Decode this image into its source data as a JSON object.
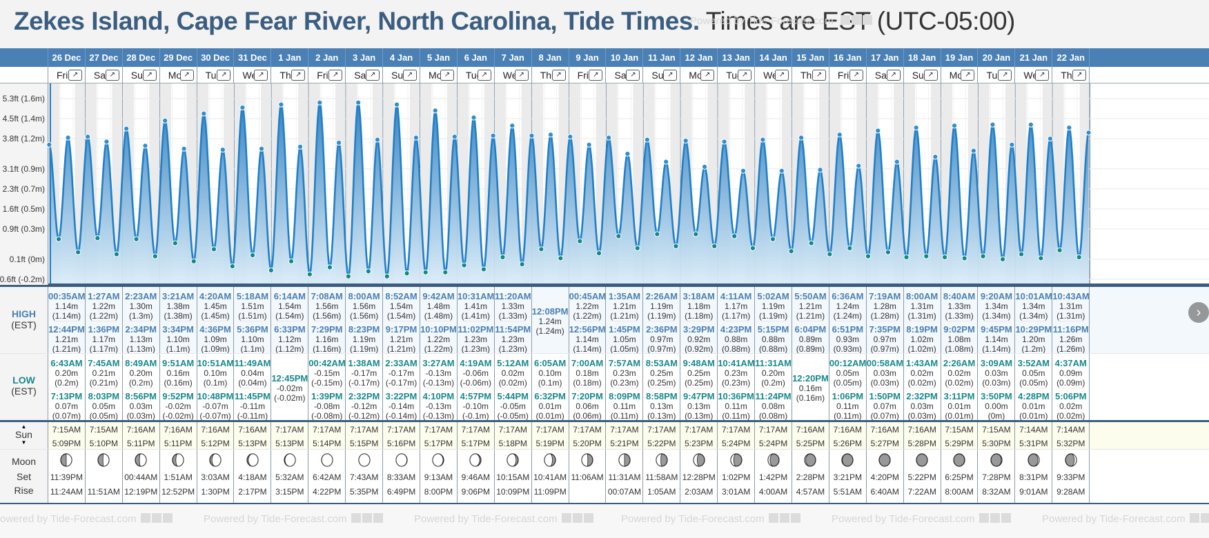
{
  "header": {
    "title_place": "Zekes Island, Cape Fear River, North Carolina, Tide Times.",
    "title_tz": "Times are EST (UTC-05:00)",
    "watermark": "Powered by Tide-Forecast.com"
  },
  "labels": {
    "high": "HIGH",
    "low": "LOW",
    "est": "(EST)",
    "sun": "Sun",
    "moon": "Moon",
    "set": "Set",
    "rise": "Rise",
    "expand_icon": "↗"
  },
  "colors": {
    "header_blue": "#4a80b4",
    "title_blue": "#3b5e80",
    "high_dot": "#2f8fd0",
    "low_dot": "#12888c",
    "line": "#1f80c8"
  },
  "chart_data": {
    "type": "area",
    "title": "Zekes Island tide height",
    "ylabel": "Tide height",
    "y_ticks": [
      "5.3ft (1.6m)",
      "4.5ft (1.4m)",
      "3.8ft (1.2m)",
      "3.1ft (0.9m)",
      "2.3ft (0.7m)",
      "1.6ft (0.5m)",
      "0.9ft (0.3m)",
      "0.1ft (0m)",
      "-0.6ft (-0.2m)"
    ],
    "y_tick_values_m": [
      1.6,
      1.4,
      1.2,
      0.9,
      0.7,
      0.5,
      0.3,
      0.0,
      -0.2
    ],
    "ylim_m": [
      -0.2,
      1.75
    ],
    "grid": true
  },
  "days": [
    {
      "date": "26 Dec",
      "dow": "Fri",
      "high": [
        {
          "t": "00:35AM",
          "h": "1.14m",
          "m": "(1.14m)"
        },
        {
          "t": "12:44PM",
          "h": "1.21m",
          "m": "(1.21m)"
        }
      ],
      "low": [
        {
          "t": "6:43AM",
          "h": "0.20m",
          "m": "(0.2m)"
        },
        {
          "t": "7:13PM",
          "h": "0.07m",
          "m": "(0.07m)"
        }
      ],
      "sunrise": "7:15AM",
      "sunset": "5:09PM",
      "moon_set": "11:39PM",
      "moon_rise": "11:24AM",
      "moon_phase": 0.5,
      "moon_waxing": true
    },
    {
      "date": "27 Dec",
      "dow": "Sat",
      "high": [
        {
          "t": "1:27AM",
          "h": "1.22m",
          "m": "(1.22m)"
        },
        {
          "t": "1:36PM",
          "h": "1.17m",
          "m": "(1.17m)"
        }
      ],
      "low": [
        {
          "t": "7:45AM",
          "h": "0.21m",
          "m": "(0.21m)"
        },
        {
          "t": "8:03PM",
          "h": "0.05m",
          "m": "(0.05m)"
        }
      ],
      "sunrise": "7:15AM",
      "sunset": "5:10PM",
      "moon_set": "",
      "moon_rise": "11:51AM",
      "moon_phase": 0.55,
      "moon_waxing": true
    },
    {
      "date": "28 Dec",
      "dow": "Sun",
      "high": [
        {
          "t": "2:23AM",
          "h": "1.30m",
          "m": "(1.3m)"
        },
        {
          "t": "2:34PM",
          "h": "1.13m",
          "m": "(1.13m)"
        }
      ],
      "low": [
        {
          "t": "8:49AM",
          "h": "0.20m",
          "m": "(0.2m)"
        },
        {
          "t": "8:56PM",
          "h": "0.03m",
          "m": "(0.03m)"
        }
      ],
      "sunrise": "7:16AM",
      "sunset": "5:11PM",
      "moon_set": "00:44AM",
      "moon_rise": "12:19PM",
      "moon_phase": 0.62,
      "moon_waxing": true
    },
    {
      "date": "29 Dec",
      "dow": "Mon",
      "high": [
        {
          "t": "3:21AM",
          "h": "1.38m",
          "m": "(1.38m)"
        },
        {
          "t": "3:34PM",
          "h": "1.10m",
          "m": "(1.1m)"
        }
      ],
      "low": [
        {
          "t": "9:51AM",
          "h": "0.16m",
          "m": "(0.16m)"
        },
        {
          "t": "9:52PM",
          "h": "-0.02m",
          "m": "(-0.02m)"
        }
      ],
      "sunrise": "7:16AM",
      "sunset": "5:11PM",
      "moon_set": "1:51AM",
      "moon_rise": "12:52PM",
      "moon_phase": 0.7,
      "moon_waxing": true
    },
    {
      "date": "30 Dec",
      "dow": "Tue",
      "high": [
        {
          "t": "4:20AM",
          "h": "1.45m",
          "m": "(1.45m)"
        },
        {
          "t": "4:36PM",
          "h": "1.09m",
          "m": "(1.09m)"
        }
      ],
      "low": [
        {
          "t": "10:51AM",
          "h": "0.10m",
          "m": "(0.1m)"
        },
        {
          "t": "10:48PM",
          "h": "-0.07m",
          "m": "(-0.07m)"
        }
      ],
      "sunrise": "7:16AM",
      "sunset": "5:12PM",
      "moon_set": "3:03AM",
      "moon_rise": "1:30PM",
      "moon_phase": 0.8,
      "moon_waxing": true
    },
    {
      "date": "31 Dec",
      "dow": "Wed",
      "high": [
        {
          "t": "5:18AM",
          "h": "1.51m",
          "m": "(1.51m)"
        },
        {
          "t": "5:36PM",
          "h": "1.10m",
          "m": "(1.1m)"
        }
      ],
      "low": [
        {
          "t": "11:49AM",
          "h": "0.04m",
          "m": "(0.04m)"
        },
        {
          "t": "11:45PM",
          "h": "-0.11m",
          "m": "(-0.11m)"
        }
      ],
      "sunrise": "7:16AM",
      "sunset": "5:13PM",
      "moon_set": "4:18AM",
      "moon_rise": "2:17PM",
      "moon_phase": 0.88,
      "moon_waxing": true
    },
    {
      "date": "1 Jan",
      "dow": "Thu",
      "high": [
        {
          "t": "6:14AM",
          "h": "1.54m",
          "m": "(1.54m)"
        },
        {
          "t": "6:33PM",
          "h": "1.12m",
          "m": "(1.12m)"
        }
      ],
      "low": [
        {
          "t": "12:45PM",
          "h": "-0.02m",
          "m": "(-0.02m)"
        }
      ],
      "sunrise": "7:17AM",
      "sunset": "5:13PM",
      "moon_set": "5:32AM",
      "moon_rise": "3:15PM",
      "moon_phase": 0.94,
      "moon_waxing": true
    },
    {
      "date": "2 Jan",
      "dow": "Fri",
      "high": [
        {
          "t": "7:08AM",
          "h": "1.56m",
          "m": "(1.56m)"
        },
        {
          "t": "7:29PM",
          "h": "1.16m",
          "m": "(1.16m)"
        }
      ],
      "low": [
        {
          "t": "00:42AM",
          "h": "-0.15m",
          "m": "(-0.15m)"
        },
        {
          "t": "1:39PM",
          "h": "-0.08m",
          "m": "(-0.08m)"
        }
      ],
      "sunrise": "7:17AM",
      "sunset": "5:14PM",
      "moon_set": "6:42AM",
      "moon_rise": "4:22PM",
      "moon_phase": 0.99,
      "moon_waxing": true
    },
    {
      "date": "3 Jan",
      "dow": "Sat",
      "high": [
        {
          "t": "8:00AM",
          "h": "1.56m",
          "m": "(1.56m)"
        },
        {
          "t": "8:23PM",
          "h": "1.19m",
          "m": "(1.19m)"
        }
      ],
      "low": [
        {
          "t": "1:38AM",
          "h": "-0.17m",
          "m": "(-0.17m)"
        },
        {
          "t": "2:32PM",
          "h": "-0.12m",
          "m": "(-0.12m)"
        }
      ],
      "sunrise": "7:17AM",
      "sunset": "5:15PM",
      "moon_set": "7:43AM",
      "moon_rise": "5:35PM",
      "moon_phase": 1.0,
      "moon_waxing": true
    },
    {
      "date": "4 Jan",
      "dow": "Sun",
      "high": [
        {
          "t": "8:52AM",
          "h": "1.54m",
          "m": "(1.54m)"
        },
        {
          "t": "9:17PM",
          "h": "1.21m",
          "m": "(1.21m)"
        }
      ],
      "low": [
        {
          "t": "2:33AM",
          "h": "-0.17m",
          "m": "(-0.17m)"
        },
        {
          "t": "3:22PM",
          "h": "-0.14m",
          "m": "(-0.14m)"
        }
      ],
      "sunrise": "7:17AM",
      "sunset": "5:16PM",
      "moon_set": "8:33AM",
      "moon_rise": "6:49PM",
      "moon_phase": 0.98,
      "moon_waxing": false
    },
    {
      "date": "5 Jan",
      "dow": "Mon",
      "high": [
        {
          "t": "9:42AM",
          "h": "1.48m",
          "m": "(1.48m)"
        },
        {
          "t": "10:10PM",
          "h": "1.22m",
          "m": "(1.22m)"
        }
      ],
      "low": [
        {
          "t": "3:27AM",
          "h": "-0.13m",
          "m": "(-0.13m)"
        },
        {
          "t": "4:10PM",
          "h": "-0.13m",
          "m": "(-0.13m)"
        }
      ],
      "sunrise": "7:17AM",
      "sunset": "5:17PM",
      "moon_set": "9:13AM",
      "moon_rise": "8:00PM",
      "moon_phase": 0.94,
      "moon_waxing": false
    },
    {
      "date": "6 Jan",
      "dow": "Tue",
      "high": [
        {
          "t": "10:31AM",
          "h": "1.41m",
          "m": "(1.41m)"
        },
        {
          "t": "11:02PM",
          "h": "1.23m",
          "m": "(1.23m)"
        }
      ],
      "low": [
        {
          "t": "4:19AM",
          "h": "-0.06m",
          "m": "(-0.06m)"
        },
        {
          "t": "4:57PM",
          "h": "-0.10m",
          "m": "(-0.1m)"
        }
      ],
      "sunrise": "7:17AM",
      "sunset": "5:17PM",
      "moon_set": "9:46AM",
      "moon_rise": "9:06PM",
      "moon_phase": 0.88,
      "moon_waxing": false
    },
    {
      "date": "7 Jan",
      "dow": "Wed",
      "high": [
        {
          "t": "11:20AM",
          "h": "1.33m",
          "m": "(1.33m)"
        },
        {
          "t": "11:54PM",
          "h": "1.23m",
          "m": "(1.23m)"
        }
      ],
      "low": [
        {
          "t": "5:12AM",
          "h": "0.02m",
          "m": "(0.02m)"
        },
        {
          "t": "5:44PM",
          "h": "-0.05m",
          "m": "(-0.05m)"
        }
      ],
      "sunrise": "7:17AM",
      "sunset": "5:18PM",
      "moon_set": "10:15AM",
      "moon_rise": "10:09PM",
      "moon_phase": 0.8,
      "moon_waxing": false
    },
    {
      "date": "8 Jan",
      "dow": "Thu",
      "high": [
        {
          "t": "12:08PM",
          "h": "1.24m",
          "m": "(1.24m)"
        }
      ],
      "low": [
        {
          "t": "6:05AM",
          "h": "0.10m",
          "m": "(0.1m)"
        },
        {
          "t": "6:32PM",
          "h": "0.01m",
          "m": "(0.01m)"
        }
      ],
      "sunrise": "7:17AM",
      "sunset": "5:19PM",
      "moon_set": "10:41AM",
      "moon_rise": "11:09PM",
      "moon_phase": 0.72,
      "moon_waxing": false
    },
    {
      "date": "9 Jan",
      "dow": "Fri",
      "high": [
        {
          "t": "00:45AM",
          "h": "1.22m",
          "m": "(1.22m)"
        },
        {
          "t": "12:56PM",
          "h": "1.14m",
          "m": "(1.14m)"
        }
      ],
      "low": [
        {
          "t": "7:00AM",
          "h": "0.18m",
          "m": "(0.18m)"
        },
        {
          "t": "7:20PM",
          "h": "0.06m",
          "m": "(0.06m)"
        }
      ],
      "sunrise": "7:17AM",
      "sunset": "5:20PM",
      "moon_set": "11:06AM",
      "moon_rise": "",
      "moon_phase": 0.55,
      "moon_waxing": false
    },
    {
      "date": "10 Jan",
      "dow": "Sat",
      "high": [
        {
          "t": "1:35AM",
          "h": "1.21m",
          "m": "(1.21m)"
        },
        {
          "t": "1:45PM",
          "h": "1.05m",
          "m": "(1.05m)"
        }
      ],
      "low": [
        {
          "t": "7:57AM",
          "h": "0.23m",
          "m": "(0.23m)"
        },
        {
          "t": "8:09PM",
          "h": "0.11m",
          "m": "(0.11m)"
        }
      ],
      "sunrise": "7:17AM",
      "sunset": "5:21PM",
      "moon_set": "11:31AM",
      "moon_rise": "00:07AM",
      "moon_phase": 0.5,
      "moon_waxing": false
    },
    {
      "date": "11 Jan",
      "dow": "Sun",
      "high": [
        {
          "t": "2:26AM",
          "h": "1.19m",
          "m": "(1.19m)"
        },
        {
          "t": "2:36PM",
          "h": "0.97m",
          "m": "(0.97m)"
        }
      ],
      "low": [
        {
          "t": "8:53AM",
          "h": "0.25m",
          "m": "(0.25m)"
        },
        {
          "t": "8:58PM",
          "h": "0.13m",
          "m": "(0.13m)"
        }
      ],
      "sunrise": "7:17AM",
      "sunset": "5:22PM",
      "moon_set": "11:58AM",
      "moon_rise": "1:05AM",
      "moon_phase": 0.42,
      "moon_waxing": false
    },
    {
      "date": "12 Jan",
      "dow": "Mon",
      "high": [
        {
          "t": "3:18AM",
          "h": "1.18m",
          "m": "(1.18m)"
        },
        {
          "t": "3:29PM",
          "h": "0.92m",
          "m": "(0.92m)"
        }
      ],
      "low": [
        {
          "t": "9:48AM",
          "h": "0.25m",
          "m": "(0.25m)"
        },
        {
          "t": "9:47PM",
          "h": "0.13m",
          "m": "(0.13m)"
        }
      ],
      "sunrise": "7:17AM",
      "sunset": "5:23PM",
      "moon_set": "12:28PM",
      "moon_rise": "2:03AM",
      "moon_phase": 0.34,
      "moon_waxing": false
    },
    {
      "date": "13 Jan",
      "dow": "Tue",
      "high": [
        {
          "t": "4:11AM",
          "h": "1.17m",
          "m": "(1.17m)"
        },
        {
          "t": "4:23PM",
          "h": "0.88m",
          "m": "(0.88m)"
        }
      ],
      "low": [
        {
          "t": "10:41AM",
          "h": "0.23m",
          "m": "(0.23m)"
        },
        {
          "t": "10:36PM",
          "h": "0.11m",
          "m": "(0.11m)"
        }
      ],
      "sunrise": "7:17AM",
      "sunset": "5:24PM",
      "moon_set": "1:02PM",
      "moon_rise": "3:01AM",
      "moon_phase": 0.26,
      "moon_waxing": false
    },
    {
      "date": "14 Jan",
      "dow": "Wed",
      "high": [
        {
          "t": "5:02AM",
          "h": "1.19m",
          "m": "(1.19m)"
        },
        {
          "t": "5:15PM",
          "h": "0.88m",
          "m": "(0.88m)"
        }
      ],
      "low": [
        {
          "t": "11:31AM",
          "h": "0.20m",
          "m": "(0.2m)"
        },
        {
          "t": "11:24PM",
          "h": "0.08m",
          "m": "(0.08m)"
        }
      ],
      "sunrise": "7:17AM",
      "sunset": "5:24PM",
      "moon_set": "1:42PM",
      "moon_rise": "4:00AM",
      "moon_phase": 0.18,
      "moon_waxing": false
    },
    {
      "date": "15 Jan",
      "dow": "Thu",
      "high": [
        {
          "t": "5:50AM",
          "h": "1.21m",
          "m": "(1.21m)"
        },
        {
          "t": "6:04PM",
          "h": "0.89m",
          "m": "(0.89m)"
        }
      ],
      "low": [
        {
          "t": "12:20PM",
          "h": "0.16m",
          "m": "(0.16m)"
        }
      ],
      "sunrise": "7:16AM",
      "sunset": "5:25PM",
      "moon_set": "2:28PM",
      "moon_rise": "4:57AM",
      "moon_phase": 0.1,
      "moon_waxing": false
    },
    {
      "date": "16 Jan",
      "dow": "Fri",
      "high": [
        {
          "t": "6:36AM",
          "h": "1.24m",
          "m": "(1.24m)"
        },
        {
          "t": "6:51PM",
          "h": "0.93m",
          "m": "(0.93m)"
        }
      ],
      "low": [
        {
          "t": "00:12AM",
          "h": "0.05m",
          "m": "(0.05m)"
        },
        {
          "t": "1:06PM",
          "h": "0.11m",
          "m": "(0.11m)"
        }
      ],
      "sunrise": "7:16AM",
      "sunset": "5:26PM",
      "moon_set": "3:21PM",
      "moon_rise": "5:51AM",
      "moon_phase": 0.04,
      "moon_waxing": false
    },
    {
      "date": "17 Jan",
      "dow": "Sat",
      "high": [
        {
          "t": "7:19AM",
          "h": "1.28m",
          "m": "(1.28m)"
        },
        {
          "t": "7:35PM",
          "h": "0.97m",
          "m": "(0.97m)"
        }
      ],
      "low": [
        {
          "t": "00:58AM",
          "h": "0.03m",
          "m": "(0.03m)"
        },
        {
          "t": "1:50PM",
          "h": "0.07m",
          "m": "(0.07m)"
        }
      ],
      "sunrise": "7:16AM",
      "sunset": "5:27PM",
      "moon_set": "4:20PM",
      "moon_rise": "6:40AM",
      "moon_phase": 0.0,
      "moon_waxing": false
    },
    {
      "date": "18 Jan",
      "dow": "Sun",
      "high": [
        {
          "t": "8:00AM",
          "h": "1.31m",
          "m": "(1.31m)"
        },
        {
          "t": "8:19PM",
          "h": "1.02m",
          "m": "(1.02m)"
        }
      ],
      "low": [
        {
          "t": "1:43AM",
          "h": "0.02m",
          "m": "(0.02m)"
        },
        {
          "t": "2:32PM",
          "h": "0.03m",
          "m": "(0.03m)"
        }
      ],
      "sunrise": "7:16AM",
      "sunset": "5:28PM",
      "moon_set": "5:22PM",
      "moon_rise": "7:22AM",
      "moon_phase": 0.0,
      "moon_waxing": true
    },
    {
      "date": "19 Jan",
      "dow": "Mon",
      "high": [
        {
          "t": "8:40AM",
          "h": "1.33m",
          "m": "(1.33m)"
        },
        {
          "t": "9:02PM",
          "h": "1.08m",
          "m": "(1.08m)"
        }
      ],
      "low": [
        {
          "t": "2:26AM",
          "h": "0.02m",
          "m": "(0.02m)"
        },
        {
          "t": "3:11PM",
          "h": "0.01m",
          "m": "(0.01m)"
        }
      ],
      "sunrise": "7:15AM",
      "sunset": "5:29PM",
      "moon_set": "6:25PM",
      "moon_rise": "8:00AM",
      "moon_phase": 0.02,
      "moon_waxing": true
    },
    {
      "date": "20 Jan",
      "dow": "Tue",
      "high": [
        {
          "t": "9:20AM",
          "h": "1.34m",
          "m": "(1.34m)"
        },
        {
          "t": "9:45PM",
          "h": "1.14m",
          "m": "(1.14m)"
        }
      ],
      "low": [
        {
          "t": "3:09AM",
          "h": "0.03m",
          "m": "(0.03m)"
        },
        {
          "t": "3:50PM",
          "h": "0.00m",
          "m": "(0m)"
        }
      ],
      "sunrise": "7:15AM",
      "sunset": "5:30PM",
      "moon_set": "7:28PM",
      "moon_rise": "8:32AM",
      "moon_phase": 0.06,
      "moon_waxing": true
    },
    {
      "date": "21 Jan",
      "dow": "Wed",
      "high": [
        {
          "t": "10:01AM",
          "h": "1.34m",
          "m": "(1.34m)"
        },
        {
          "t": "10:29PM",
          "h": "1.20m",
          "m": "(1.2m)"
        }
      ],
      "low": [
        {
          "t": "3:52AM",
          "h": "0.05m",
          "m": "(0.05m)"
        },
        {
          "t": "4:28PM",
          "h": "0.01m",
          "m": "(0.01m)"
        }
      ],
      "sunrise": "7:14AM",
      "sunset": "5:31PM",
      "moon_set": "8:31PM",
      "moon_rise": "9:01AM",
      "moon_phase": 0.12,
      "moon_waxing": true
    },
    {
      "date": "22 Jan",
      "dow": "Thu",
      "high": [
        {
          "t": "10:43AM",
          "h": "1.31m",
          "m": "(1.31m)"
        },
        {
          "t": "11:16PM",
          "h": "1.26m",
          "m": "(1.26m)"
        }
      ],
      "low": [
        {
          "t": "4:37AM",
          "h": "0.09m",
          "m": "(0.09m)"
        },
        {
          "t": "5:06PM",
          "h": "0.02m",
          "m": "(0.02m)"
        }
      ],
      "sunrise": "7:14AM",
      "sunset": "5:32PM",
      "moon_set": "9:33PM",
      "moon_rise": "9:28AM",
      "moon_phase": 0.2,
      "moon_waxing": true
    }
  ]
}
